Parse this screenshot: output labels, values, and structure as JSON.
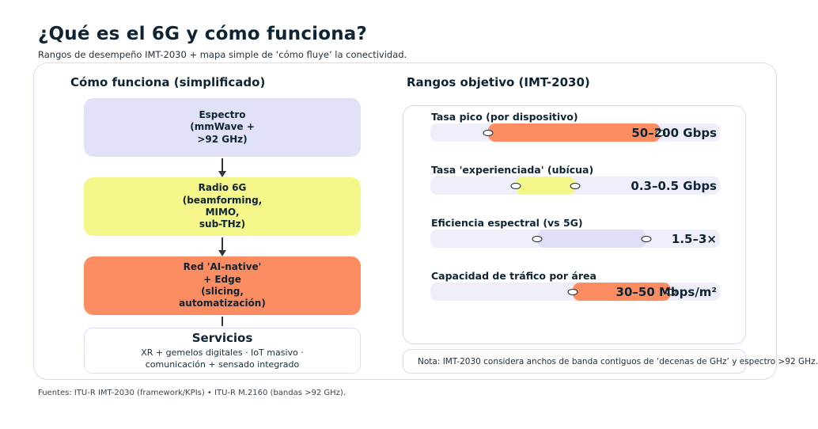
{
  "page": {
    "title": "¿Qué es el 6G y cómo funciona?",
    "subtitle": "Rangos de desempeño IMT-2030 + mapa simple de ‘cómo fluye’ la conectividad.",
    "footer": "Fuentes: ITU-R IMT-2030 (framework/KPIs) • ITU-R M.2160 (bandas >92 GHz)."
  },
  "colors": {
    "text_dark": "#0e2433",
    "lavender_fill": "#e1e1f8",
    "yellow_fill": "#f5f78a",
    "orange_fill": "#fc8d62",
    "track_fill": "#efeffb",
    "bar_lavender": "#dedef6",
    "border_lavender": "#d9d9f0",
    "arrow": "#2f363c"
  },
  "flow": {
    "heading": "Cómo funciona (simplificado)",
    "steps": [
      {
        "text": "Espectro\n(mmWave +\n>92 GHz)",
        "bg": "#e1e1f8",
        "connector": "arrow"
      },
      {
        "text": "Radio 6G\n(beamforming,\nMIMO,\nsub-THz)",
        "bg": "#f5f78a",
        "connector": "arrow"
      },
      {
        "text": "Red 'AI-native'\n+ Edge\n(slicing,\nautomatización)",
        "bg": "#fc8d62",
        "connector": "line"
      }
    ],
    "services": {
      "title": "Servicios",
      "sub": "XR + gemelos digitales · IoT masivo ·\ncomunicación + sensado integrado"
    }
  },
  "kpi": {
    "heading": "Rangos objetivo (IMT-2030)",
    "rows": [
      {
        "label": "Tasa pico (por dispositivo)",
        "value": "50–200 Gbps",
        "start_pct": 19.9,
        "width_pct": 59.6,
        "color": "#fc8d62"
      },
      {
        "label": "Tasa 'experienciada' (ubícua)",
        "value": "0.3–0.5 Gbps",
        "start_pct": 29.5,
        "width_pct": 20.5,
        "color": "#f5f78a"
      },
      {
        "label": "Eficiencia espectral (vs 5G)",
        "value": "1.5–3×",
        "start_pct": 36.9,
        "width_pct": 37.7,
        "color": "#dedef6"
      },
      {
        "label": "Capacidad de tráfico por área",
        "value": "30–50 Mbps/m²",
        "start_pct": 49.2,
        "width_pct": 33.9,
        "color": "#fc8d62"
      }
    ],
    "note": "Nota: IMT-2030 considera anchos de banda contiguos de ‘decenas de GHz’ y espectro >92 GHz."
  },
  "chart_data": {
    "type": "bar",
    "variant": "horizontal-range-bars",
    "title": "Rangos objetivo (IMT-2030)",
    "categories": [
      "Tasa pico (por dispositivo)",
      "Tasa 'experienciada' (ubícua)",
      "Eficiencia espectral (vs 5G)",
      "Capacidad de tráfico por área"
    ],
    "ranges": [
      {
        "min": 50,
        "max": 200,
        "unit": "Gbps"
      },
      {
        "min": 0.3,
        "max": 0.5,
        "unit": "Gbps"
      },
      {
        "min": 1.5,
        "max": 3,
        "unit": "×"
      },
      {
        "min": 30,
        "max": 50,
        "unit": "Mbps/m²"
      }
    ],
    "legend": "none",
    "grid": false
  }
}
